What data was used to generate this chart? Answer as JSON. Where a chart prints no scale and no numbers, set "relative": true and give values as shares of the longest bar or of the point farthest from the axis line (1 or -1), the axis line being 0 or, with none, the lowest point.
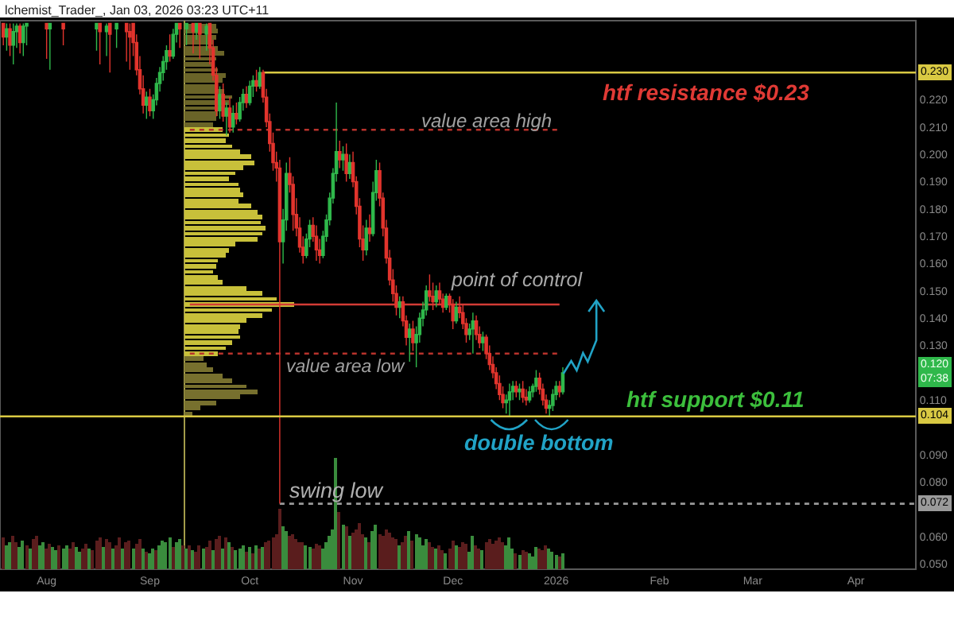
{
  "chart_data": [
    {
      "type": "candlestick",
      "xlim": [
        "2025-07-18",
        "2026-04-19"
      ],
      "xticks": [
        {
          "value": "2025-08-01",
          "label": "Aug"
        },
        {
          "value": "2025-09-01",
          "label": "Sep"
        },
        {
          "value": "2025-10-01",
          "label": "Oct"
        },
        {
          "value": "2025-11-01",
          "label": "Nov"
        },
        {
          "value": "2025-12-01",
          "label": "Dec"
        },
        {
          "value": "2026-01-01",
          "label": "2026"
        },
        {
          "value": "2026-02-01",
          "label": "Feb"
        },
        {
          "value": "2026-03-01",
          "label": "Mar"
        },
        {
          "value": "2026-04-01",
          "label": "Apr"
        }
      ],
      "ylim": [
        0.048,
        0.249
      ],
      "yticks": [
        {
          "value": 0.05,
          "label": "0.050"
        },
        {
          "value": 0.06,
          "label": "0.060"
        },
        {
          "value": 0.08,
          "label": "0.080"
        },
        {
          "value": 0.09,
          "label": "0.090"
        },
        {
          "value": 0.11,
          "label": "0.110"
        },
        {
          "value": 0.13,
          "label": "0.130"
        },
        {
          "value": 0.14,
          "label": "0.140"
        },
        {
          "value": 0.15,
          "label": "0.150"
        },
        {
          "value": 0.16,
          "label": "0.160"
        },
        {
          "value": 0.17,
          "label": "0.170"
        },
        {
          "value": 0.18,
          "label": "0.180"
        },
        {
          "value": 0.19,
          "label": "0.190"
        },
        {
          "value": 0.2,
          "label": "0.200"
        },
        {
          "value": 0.21,
          "label": "0.210"
        },
        {
          "value": 0.22,
          "label": "0.220"
        }
      ],
      "x": [
        "2025-07-19",
        "2025-07-20",
        "2025-07-21",
        "2025-07-22",
        "2025-07-23",
        "2025-07-24",
        "2025-07-25",
        "2025-07-26",
        "2025-08-01",
        "2025-08-02",
        "2025-08-06",
        "2025-08-16",
        "2025-08-17",
        "2025-08-19",
        "2025-08-20",
        "2025-08-22",
        "2025-08-25",
        "2025-08-26",
        "2025-08-27",
        "2025-08-28",
        "2025-08-29",
        "2025-08-30",
        "2025-08-31",
        "2025-09-01",
        "2025-09-02",
        "2025-09-03",
        "2025-09-04",
        "2025-09-05",
        "2025-09-06",
        "2025-09-07",
        "2025-09-08",
        "2025-09-09",
        "2025-09-10",
        "2025-09-12",
        "2025-09-14",
        "2025-09-15",
        "2025-09-16",
        "2025-09-18",
        "2025-09-19",
        "2025-09-20",
        "2025-09-21",
        "2025-09-22",
        "2025-09-23",
        "2025-09-24",
        "2025-09-25",
        "2025-09-26",
        "2025-09-27",
        "2025-09-28",
        "2025-09-29",
        "2025-09-30",
        "2025-10-01",
        "2025-10-02",
        "2025-10-03",
        "2025-10-04",
        "2025-10-05",
        "2025-10-06",
        "2025-10-07",
        "2025-10-08",
        "2025-10-09",
        "2025-10-10",
        "2025-10-11",
        "2025-10-12",
        "2025-10-13",
        "2025-10-14",
        "2025-10-15",
        "2025-10-16",
        "2025-10-17",
        "2025-10-18",
        "2025-10-19",
        "2025-10-20",
        "2025-10-21",
        "2025-10-22",
        "2025-10-23",
        "2025-10-24",
        "2025-10-25",
        "2025-10-26",
        "2025-10-27",
        "2025-10-28",
        "2025-10-29",
        "2025-10-30",
        "2025-10-31",
        "2025-11-01",
        "2025-11-02",
        "2025-11-03",
        "2025-11-04",
        "2025-11-05",
        "2025-11-06",
        "2025-11-07",
        "2025-11-08",
        "2025-11-09",
        "2025-11-10",
        "2025-11-11",
        "2025-11-12",
        "2025-11-13",
        "2025-11-14",
        "2025-11-15",
        "2025-11-16",
        "2025-11-17",
        "2025-11-18",
        "2025-11-19",
        "2025-11-20",
        "2025-11-21",
        "2025-11-22",
        "2025-11-23",
        "2025-11-24",
        "2025-11-25",
        "2025-11-26",
        "2025-11-27",
        "2025-11-28",
        "2025-11-29",
        "2025-11-30",
        "2025-12-01",
        "2025-12-02",
        "2025-12-03",
        "2025-12-04",
        "2025-12-05",
        "2025-12-06",
        "2025-12-07",
        "2025-12-08",
        "2025-12-09",
        "2025-12-10",
        "2025-12-11",
        "2025-12-12",
        "2025-12-13",
        "2025-12-14",
        "2025-12-15",
        "2025-12-16",
        "2025-12-17",
        "2025-12-18",
        "2025-12-19",
        "2025-12-20",
        "2025-12-21",
        "2025-12-22",
        "2025-12-23",
        "2025-12-24",
        "2025-12-25",
        "2025-12-26",
        "2025-12-27",
        "2025-12-28",
        "2025-12-29",
        "2025-12-30",
        "2025-12-31",
        "2026-01-01",
        "2026-01-02",
        "2026-01-03"
      ],
      "ohlc": [
        [
          0.248,
          0.248,
          0.24,
          0.243
        ],
        [
          0.243,
          0.248,
          0.238,
          0.246
        ],
        [
          0.246,
          0.248,
          0.236,
          0.24
        ],
        [
          0.24,
          0.248,
          0.233,
          0.245
        ],
        [
          0.245,
          0.248,
          0.239,
          0.247
        ],
        [
          0.247,
          0.248,
          0.237,
          0.241
        ],
        [
          0.241,
          0.248,
          0.236,
          0.247
        ],
        [
          0.247,
          0.248,
          0.24,
          0.248
        ],
        [
          0.248,
          0.248,
          0.235,
          0.246
        ],
        [
          0.246,
          0.248,
          0.231,
          0.248
        ],
        [
          0.248,
          0.248,
          0.24,
          0.246
        ],
        [
          0.246,
          0.248,
          0.238,
          0.248
        ],
        [
          0.248,
          0.248,
          0.233,
          0.245
        ],
        [
          0.245,
          0.248,
          0.236,
          0.247
        ],
        [
          0.248,
          0.248,
          0.23,
          0.244
        ],
        [
          0.246,
          0.248,
          0.239,
          0.248
        ],
        [
          0.248,
          0.248,
          0.234,
          0.245
        ],
        [
          0.245,
          0.248,
          0.231,
          0.243
        ],
        [
          0.248,
          0.248,
          0.236,
          0.241
        ],
        [
          0.241,
          0.244,
          0.229,
          0.231
        ],
        [
          0.231,
          0.236,
          0.222,
          0.224
        ],
        [
          0.224,
          0.229,
          0.215,
          0.218
        ],
        [
          0.218,
          0.223,
          0.213,
          0.221
        ],
        [
          0.221,
          0.224,
          0.214,
          0.216
        ],
        [
          0.216,
          0.222,
          0.213,
          0.22
        ],
        [
          0.22,
          0.228,
          0.218,
          0.226
        ],
        [
          0.226,
          0.232,
          0.223,
          0.23
        ],
        [
          0.23,
          0.236,
          0.227,
          0.234
        ],
        [
          0.234,
          0.24,
          0.231,
          0.238
        ],
        [
          0.238,
          0.244,
          0.234,
          0.236
        ],
        [
          0.236,
          0.246,
          0.235,
          0.244
        ],
        [
          0.244,
          0.248,
          0.241,
          0.248
        ],
        [
          0.248,
          0.248,
          0.239,
          0.246
        ],
        [
          0.246,
          0.248,
          0.24,
          0.248
        ],
        [
          0.248,
          0.248,
          0.237,
          0.245
        ],
        [
          0.245,
          0.248,
          0.242,
          0.248
        ],
        [
          0.248,
          0.248,
          0.235,
          0.244
        ],
        [
          0.244,
          0.248,
          0.238,
          0.247
        ],
        [
          0.248,
          0.248,
          0.233,
          0.239
        ],
        [
          0.239,
          0.242,
          0.227,
          0.229
        ],
        [
          0.229,
          0.232,
          0.214,
          0.216
        ],
        [
          0.216,
          0.225,
          0.213,
          0.222
        ],
        [
          0.222,
          0.226,
          0.212,
          0.214
        ],
        [
          0.214,
          0.219,
          0.207,
          0.217
        ],
        [
          0.217,
          0.221,
          0.208,
          0.21
        ],
        [
          0.21,
          0.218,
          0.208,
          0.215
        ],
        [
          0.215,
          0.219,
          0.211,
          0.213
        ],
        [
          0.213,
          0.221,
          0.212,
          0.219
        ],
        [
          0.219,
          0.224,
          0.216,
          0.222
        ],
        [
          0.222,
          0.225,
          0.217,
          0.219
        ],
        [
          0.219,
          0.227,
          0.218,
          0.225
        ],
        [
          0.225,
          0.229,
          0.221,
          0.227
        ],
        [
          0.227,
          0.231,
          0.223,
          0.225
        ],
        [
          0.225,
          0.232,
          0.224,
          0.23
        ],
        [
          0.23,
          0.231,
          0.219,
          0.221
        ],
        [
          0.221,
          0.224,
          0.21,
          0.212
        ],
        [
          0.212,
          0.215,
          0.201,
          0.204
        ],
        [
          0.204,
          0.208,
          0.194,
          0.197
        ],
        [
          0.197,
          0.201,
          0.19,
          0.195
        ],
        [
          0.195,
          0.198,
          0.072,
          0.168
        ],
        [
          0.168,
          0.18,
          0.16,
          0.176
        ],
        [
          0.176,
          0.197,
          0.172,
          0.193
        ],
        [
          0.193,
          0.199,
          0.186,
          0.189
        ],
        [
          0.189,
          0.192,
          0.172,
          0.178
        ],
        [
          0.178,
          0.184,
          0.17,
          0.173
        ],
        [
          0.173,
          0.177,
          0.164,
          0.166
        ],
        [
          0.166,
          0.17,
          0.16,
          0.163
        ],
        [
          0.163,
          0.171,
          0.162,
          0.169
        ],
        [
          0.169,
          0.176,
          0.166,
          0.174
        ],
        [
          0.174,
          0.177,
          0.168,
          0.17
        ],
        [
          0.17,
          0.174,
          0.161,
          0.165
        ],
        [
          0.165,
          0.169,
          0.16,
          0.163
        ],
        [
          0.163,
          0.172,
          0.162,
          0.17
        ],
        [
          0.17,
          0.178,
          0.168,
          0.176
        ],
        [
          0.176,
          0.186,
          0.174,
          0.184
        ],
        [
          0.184,
          0.195,
          0.182,
          0.193
        ],
        [
          0.193,
          0.219,
          0.19,
          0.201
        ],
        [
          0.201,
          0.205,
          0.195,
          0.198
        ],
        [
          0.198,
          0.203,
          0.194,
          0.2
        ],
        [
          0.2,
          0.204,
          0.19,
          0.193
        ],
        [
          0.193,
          0.2,
          0.191,
          0.197
        ],
        [
          0.197,
          0.201,
          0.188,
          0.19
        ],
        [
          0.19,
          0.192,
          0.178,
          0.181
        ],
        [
          0.181,
          0.184,
          0.166,
          0.169
        ],
        [
          0.169,
          0.174,
          0.161,
          0.165
        ],
        [
          0.165,
          0.176,
          0.163,
          0.173
        ],
        [
          0.173,
          0.178,
          0.168,
          0.171
        ],
        [
          0.171,
          0.19,
          0.17,
          0.186
        ],
        [
          0.186,
          0.198,
          0.183,
          0.194
        ],
        [
          0.194,
          0.197,
          0.181,
          0.184
        ],
        [
          0.184,
          0.186,
          0.17,
          0.173
        ],
        [
          0.173,
          0.176,
          0.16,
          0.162
        ],
        [
          0.162,
          0.165,
          0.152,
          0.154
        ],
        [
          0.154,
          0.158,
          0.146,
          0.149
        ],
        [
          0.149,
          0.152,
          0.141,
          0.144
        ],
        [
          0.144,
          0.148,
          0.14,
          0.146
        ],
        [
          0.146,
          0.148,
          0.137,
          0.139
        ],
        [
          0.139,
          0.141,
          0.13,
          0.133
        ],
        [
          0.133,
          0.138,
          0.124,
          0.136
        ],
        [
          0.136,
          0.139,
          0.128,
          0.131
        ],
        [
          0.131,
          0.137,
          0.122,
          0.134
        ],
        [
          0.134,
          0.142,
          0.131,
          0.14
        ],
        [
          0.14,
          0.146,
          0.137,
          0.143
        ],
        [
          0.143,
          0.152,
          0.141,
          0.15
        ],
        [
          0.15,
          0.156,
          0.146,
          0.148
        ],
        [
          0.148,
          0.153,
          0.143,
          0.146
        ],
        [
          0.146,
          0.152,
          0.144,
          0.15
        ],
        [
          0.15,
          0.153,
          0.145,
          0.147
        ],
        [
          0.147,
          0.149,
          0.142,
          0.144
        ],
        [
          0.144,
          0.149,
          0.143,
          0.148
        ],
        [
          0.148,
          0.149,
          0.142,
          0.145
        ],
        [
          0.145,
          0.147,
          0.136,
          0.139
        ],
        [
          0.139,
          0.146,
          0.138,
          0.144
        ],
        [
          0.144,
          0.148,
          0.14,
          0.142
        ],
        [
          0.142,
          0.145,
          0.136,
          0.138
        ],
        [
          0.138,
          0.14,
          0.131,
          0.134
        ],
        [
          0.134,
          0.138,
          0.132,
          0.136
        ],
        [
          0.136,
          0.142,
          0.127,
          0.139
        ],
        [
          0.139,
          0.141,
          0.132,
          0.134
        ],
        [
          0.134,
          0.137,
          0.129,
          0.131
        ],
        [
          0.131,
          0.135,
          0.128,
          0.133
        ],
        [
          0.133,
          0.134,
          0.125,
          0.127
        ],
        [
          0.127,
          0.13,
          0.121,
          0.123
        ],
        [
          0.123,
          0.126,
          0.118,
          0.12
        ],
        [
          0.12,
          0.122,
          0.114,
          0.116
        ],
        [
          0.116,
          0.119,
          0.11,
          0.112
        ],
        [
          0.112,
          0.115,
          0.107,
          0.109
        ],
        [
          0.109,
          0.112,
          0.105,
          0.11
        ],
        [
          0.11,
          0.116,
          0.104,
          0.113
        ],
        [
          0.113,
          0.117,
          0.11,
          0.115
        ],
        [
          0.115,
          0.117,
          0.111,
          0.113
        ],
        [
          0.113,
          0.116,
          0.11,
          0.114
        ],
        [
          0.114,
          0.117,
          0.109,
          0.111
        ],
        [
          0.111,
          0.114,
          0.108,
          0.11
        ],
        [
          0.11,
          0.115,
          0.109,
          0.113
        ],
        [
          0.113,
          0.116,
          0.111,
          0.115
        ],
        [
          0.115,
          0.121,
          0.113,
          0.118
        ],
        [
          0.118,
          0.12,
          0.112,
          0.114
        ],
        [
          0.114,
          0.116,
          0.108,
          0.11
        ],
        [
          0.11,
          0.112,
          0.105,
          0.107
        ],
        [
          0.107,
          0.11,
          0.104,
          0.108
        ],
        [
          0.108,
          0.114,
          0.106,
          0.112
        ],
        [
          0.112,
          0.117,
          0.11,
          0.115
        ],
        [
          0.115,
          0.117,
          0.111,
          0.113
        ],
        [
          0.113,
          0.122,
          0.112,
          0.12
        ]
      ],
      "colors": [
        "#e2342d",
        "#2fb84b",
        "#e2342d",
        "#2fb84b",
        "#2fb84b",
        "#e2342d",
        "#2fb84b",
        "#2fb84b",
        "#e2342d",
        "#2fb84b",
        "#e2342d",
        "#2fb84b",
        "#e2342d",
        "#2fb84b",
        "#e2342d",
        "#2fb84b",
        "#e2342d",
        "#e2342d",
        "#e2342d",
        "#e2342d",
        "#e2342d",
        "#e2342d",
        "#2fb84b",
        "#e2342d",
        "#2fb84b",
        "#2fb84b",
        "#2fb84b",
        "#2fb84b",
        "#2fb84b",
        "#e2342d",
        "#2fb84b",
        "#2fb84b",
        "#e2342d",
        "#2fb84b",
        "#e2342d",
        "#2fb84b",
        "#e2342d",
        "#2fb84b",
        "#e2342d",
        "#e2342d",
        "#e2342d",
        "#2fb84b",
        "#e2342d",
        "#2fb84b",
        "#e2342d",
        "#2fb84b",
        "#e2342d",
        "#2fb84b",
        "#2fb84b",
        "#e2342d",
        "#2fb84b",
        "#2fb84b",
        "#e2342d",
        "#2fb84b",
        "#e2342d",
        "#e2342d",
        "#e2342d",
        "#e2342d",
        "#e2342d",
        "#e2342d",
        "#2fb84b",
        "#2fb84b",
        "#e2342d",
        "#e2342d",
        "#e2342d",
        "#e2342d",
        "#e2342d",
        "#2fb84b",
        "#2fb84b",
        "#e2342d",
        "#e2342d",
        "#e2342d",
        "#2fb84b",
        "#2fb84b",
        "#2fb84b",
        "#2fb84b",
        "#2fb84b",
        "#e2342d",
        "#2fb84b",
        "#e2342d",
        "#2fb84b",
        "#e2342d",
        "#e2342d",
        "#e2342d",
        "#e2342d",
        "#2fb84b",
        "#e2342d",
        "#2fb84b",
        "#2fb84b",
        "#e2342d",
        "#e2342d",
        "#e2342d",
        "#e2342d",
        "#e2342d",
        "#e2342d",
        "#2fb84b",
        "#e2342d",
        "#e2342d",
        "#2fb84b",
        "#e2342d",
        "#2fb84b",
        "#2fb84b",
        "#2fb84b",
        "#2fb84b",
        "#e2342d",
        "#e2342d",
        "#2fb84b",
        "#e2342d",
        "#e2342d",
        "#2fb84b",
        "#e2342d",
        "#e2342d",
        "#2fb84b",
        "#e2342d",
        "#e2342d",
        "#e2342d",
        "#2fb84b",
        "#2fb84b",
        "#e2342d",
        "#e2342d",
        "#2fb84b",
        "#e2342d",
        "#e2342d",
        "#e2342d",
        "#e2342d",
        "#e2342d",
        "#e2342d",
        "#2fb84b",
        "#2fb84b",
        "#2fb84b",
        "#e2342d",
        "#2fb84b",
        "#e2342d",
        "#e2342d",
        "#2fb84b",
        "#2fb84b",
        "#2fb84b",
        "#e2342d",
        "#e2342d",
        "#e2342d",
        "#2fb84b",
        "#2fb84b",
        "#2fb84b",
        "#e2342d",
        "#2fb84b"
      ],
      "series": [
        {
          "type": "line",
          "name": "0.230",
          "color": "#d9c943",
          "x": [
            "2025-10-05",
            "2026-04-19"
          ],
          "values": [
            0.23,
            0.23
          ]
        },
        {
          "type": "line",
          "color": "#b8322c",
          "line_style": "dotted",
          "x": [
            "2025-09-13",
            "2026-01-02"
          ],
          "values": [
            0.209,
            0.209
          ]
        },
        {
          "type": "line",
          "color": "#d23c36",
          "x": [
            "2025-09-13",
            "2026-01-02"
          ],
          "values": [
            0.145,
            0.145
          ]
        },
        {
          "type": "line",
          "color": "#b8322c",
          "line_style": "dotted",
          "x": [
            "2025-09-13",
            "2026-01-02"
          ],
          "values": [
            0.127,
            0.127
          ]
        },
        {
          "type": "line",
          "name": "0.072",
          "color": "#9a9a9a",
          "line_style": "dotted",
          "x": [
            "2025-10-10",
            "2026-04-19"
          ],
          "values": [
            0.072,
            0.072
          ]
        }
      ],
      "ref_lines": [
        {
          "axis": "y",
          "value": 0.104,
          "label": "0.104",
          "color": "#d9c943"
        }
      ],
      "annotations": [
        "lchemist_Trader_, Jan 03, 2026 03:23 UTC+11",
        {
          "text": "htf resistance $0.23",
          "x": "2026-02-15",
          "y": 0.23
        },
        {
          "text": "value area high",
          "x": "2025-12-11",
          "y": 0.209
        },
        {
          "text": "point of control",
          "x": "2025-12-20",
          "y": 0.145
        },
        {
          "text": "value area low",
          "x": "2025-10-30",
          "y": 0.127
        },
        {
          "text": "htf support $0.11",
          "x": "2026-02-18",
          "y": 0.104
        },
        {
          "text": "double bottom",
          "x": "2025-12-27",
          "y": 0.104
        },
        {
          "text": "swing low",
          "x": "2025-10-27",
          "y": 0.072
        },
        {
          "text": "0.120\n07:38",
          "y": 0.12
        }
      ]
    },
    {
      "type": "bar",
      "relative": true,
      "tick_labels": false,
      "xlim": [
        "2025-07-18",
        "2026-04-19"
      ],
      "x": [
        "2025-07-19",
        "2025-07-20",
        "2025-07-21",
        "2025-07-22",
        "2025-07-23",
        "2025-07-24",
        "2025-07-25",
        "2025-07-26",
        "2025-07-27",
        "2025-07-28",
        "2025-07-29",
        "2025-07-30",
        "2025-07-31",
        "2025-08-01",
        "2025-08-02",
        "2025-08-03",
        "2025-08-04",
        "2025-08-05",
        "2025-08-06",
        "2025-08-07",
        "2025-08-08",
        "2025-08-09",
        "2025-08-10",
        "2025-08-11",
        "2025-08-12",
        "2025-08-13",
        "2025-08-14",
        "2025-08-15",
        "2025-08-16",
        "2025-08-17",
        "2025-08-18",
        "2025-08-19",
        "2025-08-20",
        "2025-08-21",
        "2025-08-22",
        "2025-08-23",
        "2025-08-24",
        "2025-08-25",
        "2025-08-26",
        "2025-08-27",
        "2025-08-28",
        "2025-08-29",
        "2025-08-30",
        "2025-08-31",
        "2025-09-01",
        "2025-09-02",
        "2025-09-03",
        "2025-09-04",
        "2025-09-05",
        "2025-09-06",
        "2025-09-07",
        "2025-09-08",
        "2025-09-09",
        "2025-09-10",
        "2025-09-11",
        "2025-09-12",
        "2025-09-13",
        "2025-09-14",
        "2025-09-15",
        "2025-09-16",
        "2025-09-17",
        "2025-09-18",
        "2025-09-19",
        "2025-09-20",
        "2025-09-21",
        "2025-09-22",
        "2025-09-23",
        "2025-09-24",
        "2025-09-25",
        "2025-09-26",
        "2025-09-27",
        "2025-09-28",
        "2025-09-29",
        "2025-09-30",
        "2025-10-01",
        "2025-10-02",
        "2025-10-03",
        "2025-10-04",
        "2025-10-05",
        "2025-10-06",
        "2025-10-07",
        "2025-10-08",
        "2025-10-09",
        "2025-10-10",
        "2025-10-11",
        "2025-10-12",
        "2025-10-13",
        "2025-10-14",
        "2025-10-15",
        "2025-10-16",
        "2025-10-17",
        "2025-10-18",
        "2025-10-19",
        "2025-10-20",
        "2025-10-21",
        "2025-10-22",
        "2025-10-23",
        "2025-10-24",
        "2025-10-25",
        "2025-10-26",
        "2025-10-27",
        "2025-10-28",
        "2025-10-29",
        "2025-10-30",
        "2025-10-31",
        "2025-11-01",
        "2025-11-02",
        "2025-11-03",
        "2025-11-04",
        "2025-11-05",
        "2025-11-06",
        "2025-11-07",
        "2025-11-08",
        "2025-11-09",
        "2025-11-10",
        "2025-11-11",
        "2025-11-12",
        "2025-11-13",
        "2025-11-14",
        "2025-11-15",
        "2025-11-16",
        "2025-11-17",
        "2025-11-18",
        "2025-11-19",
        "2025-11-20",
        "2025-11-21",
        "2025-11-22",
        "2025-11-23",
        "2025-11-24",
        "2025-11-25",
        "2025-11-26",
        "2025-11-27",
        "2025-11-28",
        "2025-11-29",
        "2025-11-30",
        "2025-12-01",
        "2025-12-02",
        "2025-12-03",
        "2025-12-04",
        "2025-12-05",
        "2025-12-06",
        "2025-12-07",
        "2025-12-08",
        "2025-12-09",
        "2025-12-10",
        "2025-12-11",
        "2025-12-12",
        "2025-12-13",
        "2025-12-14",
        "2025-12-15",
        "2025-12-16",
        "2025-12-17",
        "2025-12-18",
        "2025-12-19",
        "2025-12-20",
        "2025-12-21",
        "2025-12-22",
        "2025-12-23",
        "2025-12-24",
        "2025-12-25",
        "2025-12-26",
        "2025-12-27",
        "2025-12-28",
        "2025-12-29",
        "2025-12-30",
        "2025-12-31",
        "2026-01-01",
        "2026-01-02",
        "2026-01-03"
      ],
      "values": [
        0.28,
        0.22,
        0.25,
        0.3,
        0.24,
        0.2,
        0.26,
        0.22,
        0.18,
        0.27,
        0.3,
        0.21,
        0.24,
        0.19,
        0.23,
        0.2,
        0.17,
        0.22,
        0.19,
        0.21,
        0.18,
        0.24,
        0.2,
        0.16,
        0.19,
        0.23,
        0.18,
        0.17,
        0.26,
        0.29,
        0.2,
        0.27,
        0.25,
        0.19,
        0.22,
        0.28,
        0.18,
        0.24,
        0.26,
        0.19,
        0.23,
        0.27,
        0.18,
        0.16,
        0.15,
        0.19,
        0.17,
        0.21,
        0.26,
        0.24,
        0.28,
        0.2,
        0.25,
        0.27,
        0.22,
        0.19,
        0.21,
        0.17,
        0.16,
        0.22,
        0.18,
        0.2,
        0.26,
        0.17,
        0.27,
        0.3,
        0.19,
        0.28,
        0.24,
        0.2,
        0.17,
        0.19,
        0.21,
        0.16,
        0.2,
        0.15,
        0.22,
        0.18,
        0.2,
        0.24,
        0.26,
        0.29,
        0.31,
        0.55,
        0.38,
        0.34,
        0.3,
        0.32,
        0.27,
        0.25,
        0.24,
        0.22,
        0.2,
        0.18,
        0.23,
        0.21,
        0.19,
        0.25,
        0.3,
        0.36,
        1,
        0.52,
        0.4,
        0.38,
        0.3,
        0.33,
        0.36,
        0.42,
        0.31,
        0.28,
        0.24,
        0.35,
        0.4,
        0.32,
        0.3,
        0.36,
        0.33,
        0.29,
        0.27,
        0.22,
        0.25,
        0.3,
        0.34,
        0.26,
        0.31,
        0.28,
        0.22,
        0.27,
        0.25,
        0.2,
        0.18,
        0.21,
        0.17,
        0.15,
        0.19,
        0.26,
        0.22,
        0.2,
        0.24,
        0.23,
        0.16,
        0.3,
        0.22,
        0.19,
        0.17,
        0.25,
        0.27,
        0.23,
        0.26,
        0.28,
        0.24,
        0.22,
        0.29,
        0.18,
        0.15,
        0.13,
        0.17,
        0.16,
        0.14,
        0.12,
        0.2,
        0.18,
        0.17,
        0.21,
        0.19,
        0.16,
        0.13,
        0.12,
        0.15
      ],
      "colors": [
        "#5a1d1d",
        "#3a8c3d",
        "#3a8c3d",
        "#5a1d1d",
        "#5a1d1d",
        "#3a8c3d",
        "#3a8c3d",
        "#5a1d1d",
        "#3a8c3d",
        "#5a1d1d",
        "#5a1d1d",
        "#3a8c3d",
        "#3a8c3d",
        "#5a1d1d",
        "#5a1d1d",
        "#3a8c3d",
        "#3a8c3d",
        "#5a1d1d",
        "#3a8c3d",
        "#3a8c3d",
        "#5a1d1d",
        "#5a1d1d",
        "#3a8c3d",
        "#3a8c3d",
        "#5a1d1d",
        "#5a1d1d",
        "#3a8c3d",
        "#5a1d1d",
        "#5a1d1d",
        "#5a1d1d",
        "#3a8c3d",
        "#5a1d1d",
        "#5a1d1d",
        "#3a8c3d",
        "#5a1d1d",
        "#5a1d1d",
        "#3a8c3d",
        "#5a1d1d",
        "#5a1d1d",
        "#3a8c3d",
        "#5a1d1d",
        "#5a1d1d",
        "#3a8c3d",
        "#5a1d1d",
        "#3a8c3d",
        "#3a8c3d",
        "#5a1d1d",
        "#3a8c3d",
        "#3a8c3d",
        "#3a8c3d",
        "#3a8c3d",
        "#5a1d1d",
        "#3a8c3d",
        "#3a8c3d",
        "#5a1d1d",
        "#3a8c3d",
        "#5a1d1d",
        "#3a8c3d",
        "#5a1d1d",
        "#5a1d1d",
        "#3a8c3d",
        "#5a1d1d",
        "#5a1d1d",
        "#3a8c3d",
        "#5a1d1d",
        "#5a1d1d",
        "#3a8c3d",
        "#5a1d1d",
        "#3a8c3d",
        "#5a1d1d",
        "#3a8c3d",
        "#3a8c3d",
        "#3a8c3d",
        "#5a1d1d",
        "#3a8c3d",
        "#5a1d1d",
        "#3a8c3d",
        "#5a1d1d",
        "#3a8c3d",
        "#5a1d1d",
        "#5a1d1d",
        "#5a1d1d",
        "#5a1d1d",
        "#5a1d1d",
        "#3a8c3d",
        "#3a8c3d",
        "#5a1d1d",
        "#5a1d1d",
        "#5a1d1d",
        "#5a1d1d",
        "#5a1d1d",
        "#3a8c3d",
        "#3a8c3d",
        "#5a1d1d",
        "#5a1d1d",
        "#5a1d1d",
        "#3a8c3d",
        "#3a8c3d",
        "#3a8c3d",
        "#3a8c3d",
        "#3a8c3d",
        "#5a1d1d",
        "#3a8c3d",
        "#5a1d1d",
        "#3a8c3d",
        "#5a1d1d",
        "#5a1d1d",
        "#5a1d1d",
        "#5a1d1d",
        "#3a8c3d",
        "#5a1d1d",
        "#3a8c3d",
        "#3a8c3d",
        "#5a1d1d",
        "#5a1d1d",
        "#5a1d1d",
        "#5a1d1d",
        "#5a1d1d",
        "#5a1d1d",
        "#3a8c3d",
        "#5a1d1d",
        "#5a1d1d",
        "#3a8c3d",
        "#5a1d1d",
        "#3a8c3d",
        "#3a8c3d",
        "#3a8c3d",
        "#3a8c3d",
        "#5a1d1d",
        "#5a1d1d",
        "#3a8c3d",
        "#5a1d1d",
        "#5a1d1d",
        "#3a8c3d",
        "#5a1d1d",
        "#5a1d1d",
        "#3a8c3d",
        "#5a1d1d",
        "#5a1d1d",
        "#5a1d1d",
        "#3a8c3d",
        "#3a8c3d",
        "#5a1d1d",
        "#5a1d1d",
        "#3a8c3d",
        "#5a1d1d",
        "#5a1d1d",
        "#5a1d1d",
        "#5a1d1d",
        "#5a1d1d",
        "#5a1d1d",
        "#3a8c3d",
        "#3a8c3d",
        "#3a8c3d",
        "#5a1d1d",
        "#3a8c3d",
        "#5a1d1d",
        "#5a1d1d",
        "#3a8c3d",
        "#3a8c3d",
        "#3a8c3d",
        "#5a1d1d",
        "#5a1d1d",
        "#5a1d1d",
        "#3a8c3d",
        "#3a8c3d",
        "#3a8c3d",
        "#5a1d1d",
        "#3a8c3d"
      ]
    },
    {
      "type": "bar",
      "orientation": "horizontal",
      "relative": true,
      "tick_labels": false,
      "ylim": [
        0.048,
        0.249
      ],
      "x": [
        0.105,
        0.107,
        0.109,
        0.111,
        0.113,
        0.115,
        0.117,
        0.119,
        0.121,
        0.123,
        0.125,
        0.127,
        0.129,
        0.131,
        0.133,
        0.135,
        0.137,
        0.139,
        0.141,
        0.143,
        0.145,
        0.147,
        0.149,
        0.151,
        0.153,
        0.155,
        0.157,
        0.159,
        0.161,
        0.163,
        0.165,
        0.167,
        0.169,
        0.171,
        0.173,
        0.175,
        0.177,
        0.179,
        0.181,
        0.183,
        0.185,
        0.187,
        0.189,
        0.191,
        0.193,
        0.195,
        0.197,
        0.199,
        0.201,
        0.203,
        0.205,
        0.207,
        0.209,
        0.211,
        0.213,
        0.215,
        0.217,
        0.219,
        0.221,
        0.223,
        0.225,
        0.227,
        0.229,
        0.231,
        0.233,
        0.235,
        0.237,
        0.239,
        0.241,
        0.243,
        0.245,
        0.247
      ],
      "values": [
        0.07,
        0.14,
        0.29,
        0.51,
        0.66,
        0.57,
        0.43,
        0.34,
        0.26,
        0.2,
        0.17,
        0.31,
        0.37,
        0.43,
        0.51,
        0.49,
        0.51,
        0.57,
        0.71,
        0.8,
        1,
        0.83,
        0.71,
        0.57,
        0.34,
        0.31,
        0.26,
        0.29,
        0.31,
        0.37,
        0.4,
        0.46,
        0.66,
        0.71,
        0.74,
        0.69,
        0.71,
        0.66,
        0.6,
        0.49,
        0.54,
        0.51,
        0.49,
        0.4,
        0.46,
        0.54,
        0.63,
        0.6,
        0.51,
        0.43,
        0.37,
        0.4,
        0.34,
        0.26,
        0.29,
        0.31,
        0.34,
        0.4,
        0.43,
        0.36,
        0.29,
        0.34,
        0.37,
        0.31,
        0.26,
        0.29,
        0.36,
        0.31,
        0.26,
        0.29,
        0.31,
        0.29
      ],
      "colors": [
        "#77702e",
        "#77702e",
        "#77702e",
        "#77702e",
        "#77702e",
        "#77702e",
        "#77702e",
        "#77702e",
        "#77702e",
        "#77702e",
        "#77702e",
        "#c8c03a",
        "#c8c03a",
        "#c8c03a",
        "#c8c03a",
        "#c8c03a",
        "#c8c03a",
        "#c8c03a",
        "#c8c03a",
        "#c8c03a",
        "#c8c03a",
        "#c8c03a",
        "#c8c03a",
        "#c8c03a",
        "#c8c03a",
        "#c8c03a",
        "#c8c03a",
        "#c8c03a",
        "#c8c03a",
        "#c8c03a",
        "#c8c03a",
        "#c8c03a",
        "#c8c03a",
        "#c8c03a",
        "#c8c03a",
        "#c8c03a",
        "#c8c03a",
        "#c8c03a",
        "#c8c03a",
        "#c8c03a",
        "#c8c03a",
        "#c8c03a",
        "#c8c03a",
        "#c8c03a",
        "#c8c03a",
        "#c8c03a",
        "#c8c03a",
        "#c8c03a",
        "#c8c03a",
        "#c8c03a",
        "#c8c03a",
        "#c8c03a",
        "#c8c03a",
        "#6a6428",
        "#6a6428",
        "#6a6428",
        "#6a6428",
        "#6a6428",
        "#6a6428",
        "#6a6428",
        "#6a6428",
        "#6a6428",
        "#6a6428",
        "#6a6428",
        "#6a6428",
        "#6a6428",
        "#6a6428",
        "#6a6428",
        "#6a6428",
        "#6a6428",
        "#6a6428",
        "#6a6428"
      ]
    }
  ]
}
